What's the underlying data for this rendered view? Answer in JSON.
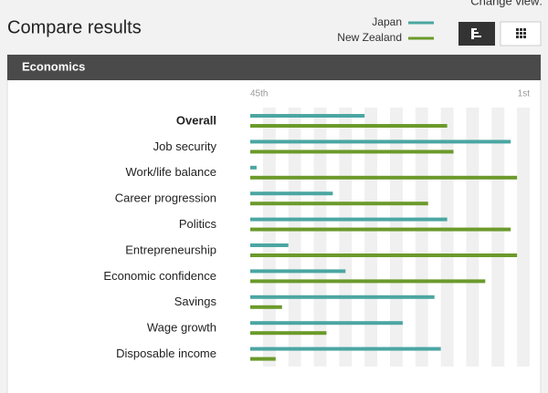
{
  "header": {
    "title": "Compare results",
    "change_view": "Change view:"
  },
  "panel": {
    "title": "Economics"
  },
  "chart_data": {
    "type": "bar",
    "orientation": "horizontal",
    "categories": [
      "Overall",
      "Job security",
      "Work/life balance",
      "Career progression",
      "Politics",
      "Entrepreneurship",
      "Economic confidence",
      "Savings",
      "Wage growth",
      "Disposable income"
    ],
    "series": [
      {
        "name": "Japan",
        "color": "#4ba6a2",
        "values": [
          27,
          4,
          44,
          32,
          14,
          39,
          30,
          16,
          21,
          15
        ]
      },
      {
        "name": "New Zealand",
        "color": "#6b9a2b",
        "values": [
          14,
          13,
          3,
          17,
          4,
          3,
          8,
          40,
          33,
          41
        ]
      }
    ],
    "xlim": [
      45,
      1
    ],
    "xticks": [
      {
        "value": 45,
        "label": "45th"
      },
      {
        "value": 1,
        "label": "1st"
      }
    ]
  }
}
